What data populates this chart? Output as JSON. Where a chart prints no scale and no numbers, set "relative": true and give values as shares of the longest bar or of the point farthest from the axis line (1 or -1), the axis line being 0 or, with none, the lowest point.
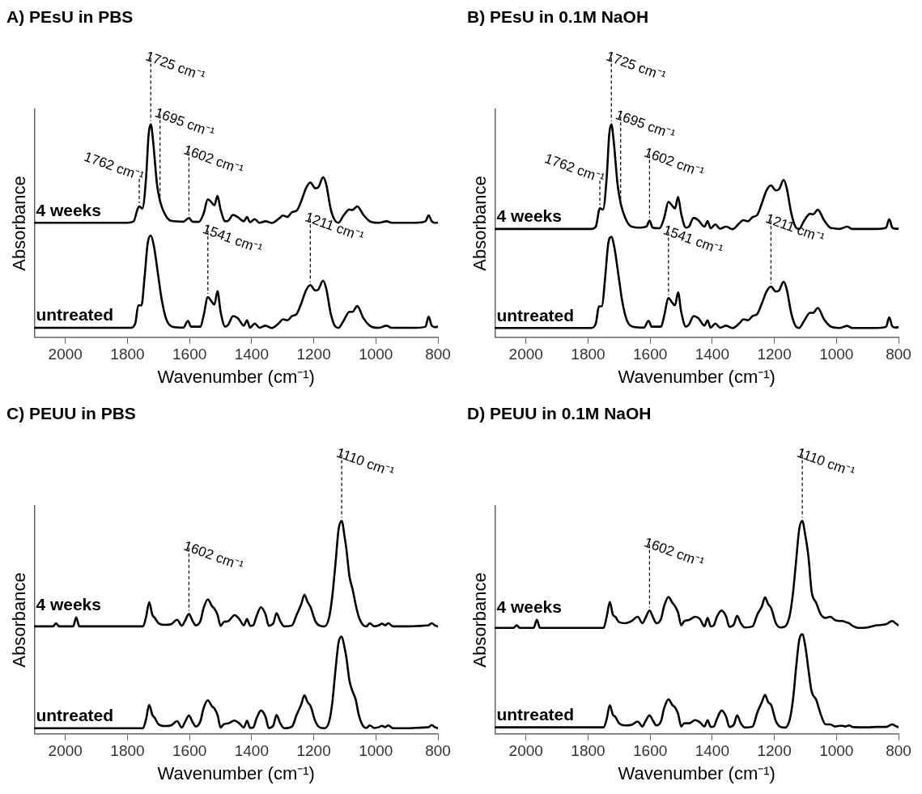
{
  "chart_data": [
    {
      "type": "line",
      "title": "A) PEsU in PBS",
      "xlabel": "Wavenumber (cm⁻¹)",
      "ylabel": "Absorbance",
      "xlim": [
        2100,
        800
      ],
      "xticks": [
        2000,
        1800,
        1600,
        1400,
        1200,
        1000,
        800
      ],
      "relative": true,
      "grid": false,
      "legend": false,
      "series": [
        {
          "name": "4 weeks",
          "color": "#000000",
          "x": [
            2100,
            1800,
            1780,
            1768,
            1762,
            1752,
            1740,
            1732,
            1725,
            1718,
            1705,
            1695,
            1680,
            1660,
            1620,
            1602,
            1590,
            1570,
            1555,
            1541,
            1530,
            1520,
            1510,
            1500,
            1485,
            1475,
            1460,
            1445,
            1425,
            1415,
            1405,
            1390,
            1375,
            1355,
            1335,
            1310,
            1300,
            1285,
            1270,
            1255,
            1240,
            1225,
            1211,
            1195,
            1185,
            1170,
            1160,
            1145,
            1130,
            1120,
            1105,
            1085,
            1075,
            1060,
            1040,
            1020,
            1010,
            990,
            965,
            950,
            870,
            840,
            830,
            820,
            810,
            800
          ],
          "values": [
            0.538,
            0.538,
            0.545,
            0.6,
            0.615,
            0.605,
            0.75,
            0.95,
            1.0,
            0.93,
            0.72,
            0.64,
            0.58,
            0.547,
            0.543,
            0.56,
            0.543,
            0.542,
            0.58,
            0.648,
            0.635,
            0.62,
            0.664,
            0.6,
            0.545,
            0.548,
            0.575,
            0.565,
            0.545,
            0.565,
            0.54,
            0.555,
            0.538,
            0.545,
            0.537,
            0.56,
            0.572,
            0.565,
            0.588,
            0.595,
            0.64,
            0.7,
            0.727,
            0.7,
            0.705,
            0.751,
            0.72,
            0.6,
            0.545,
            0.538,
            0.57,
            0.6,
            0.598,
            0.615,
            0.575,
            0.545,
            0.54,
            0.538,
            0.545,
            0.538,
            0.538,
            0.545,
            0.573,
            0.545,
            0.538,
            0.538
          ]
        },
        {
          "name": "untreated",
          "color": "#000000",
          "x": [
            2100,
            1790,
            1775,
            1765,
            1755,
            1745,
            1735,
            1725,
            1715,
            1700,
            1690,
            1675,
            1655,
            1620,
            1605,
            1595,
            1565,
            1555,
            1541,
            1530,
            1520,
            1510,
            1500,
            1485,
            1475,
            1460,
            1445,
            1425,
            1415,
            1405,
            1390,
            1375,
            1355,
            1335,
            1310,
            1300,
            1285,
            1270,
            1255,
            1240,
            1225,
            1211,
            1195,
            1185,
            1170,
            1160,
            1145,
            1130,
            1120,
            1105,
            1085,
            1075,
            1060,
            1040,
            1020,
            1010,
            990,
            965,
            950,
            870,
            840,
            830,
            820,
            810,
            800
          ],
          "values": [
            0.045,
            0.045,
            0.065,
            0.15,
            0.15,
            0.28,
            0.44,
            0.478,
            0.43,
            0.28,
            0.18,
            0.085,
            0.05,
            0.046,
            0.077,
            0.05,
            0.05,
            0.1,
            0.189,
            0.17,
            0.154,
            0.217,
            0.12,
            0.05,
            0.06,
            0.1,
            0.09,
            0.055,
            0.08,
            0.045,
            0.065,
            0.045,
            0.055,
            0.044,
            0.07,
            0.085,
            0.08,
            0.1,
            0.11,
            0.16,
            0.22,
            0.245,
            0.22,
            0.225,
            0.266,
            0.23,
            0.11,
            0.05,
            0.045,
            0.075,
            0.12,
            0.12,
            0.147,
            0.09,
            0.055,
            0.048,
            0.045,
            0.055,
            0.045,
            0.045,
            0.05,
            0.098,
            0.055,
            0.048,
            0.05
          ]
        }
      ],
      "annotations": [
        {
          "text": "1762 cm⁻¹",
          "x": 1762,
          "y": 0.615
        },
        {
          "text": "1725 cm⁻¹",
          "x": 1725,
          "y": 1.0
        },
        {
          "text": "1695 cm⁻¹",
          "x": 1695,
          "y": 0.64
        },
        {
          "text": "1602 cm⁻¹",
          "x": 1602,
          "y": 0.56
        },
        {
          "text": "1541 cm⁻¹",
          "x": 1541,
          "y": 0.189
        },
        {
          "text": "1211 cm⁻¹",
          "x": 1211,
          "y": 0.245
        }
      ]
    },
    {
      "type": "line",
      "title": "B) PEsU in 0.1M NaOH",
      "xlabel": "Wavenumber (cm⁻¹)",
      "ylabel": "Absorbance",
      "xlim": [
        2100,
        800
      ],
      "xticks": [
        2000,
        1800,
        1600,
        1400,
        1200,
        1000,
        800
      ],
      "relative": true,
      "grid": false,
      "legend": false,
      "series": [
        {
          "name": "4 weeks",
          "color": "#000000",
          "x": [
            2100,
            1790,
            1775,
            1765,
            1762,
            1752,
            1740,
            1732,
            1725,
            1718,
            1705,
            1695,
            1680,
            1660,
            1630,
            1612,
            1602,
            1592,
            1570,
            1555,
            1541,
            1530,
            1520,
            1510,
            1500,
            1485,
            1475,
            1460,
            1445,
            1425,
            1415,
            1405,
            1390,
            1375,
            1355,
            1335,
            1310,
            1300,
            1285,
            1270,
            1255,
            1240,
            1225,
            1211,
            1195,
            1185,
            1170,
            1160,
            1145,
            1130,
            1120,
            1105,
            1085,
            1075,
            1060,
            1040,
            1020,
            1010,
            990,
            965,
            950,
            870,
            840,
            830,
            820,
            810,
            800
          ],
          "values": [
            0.509,
            0.509,
            0.52,
            0.595,
            0.606,
            0.6,
            0.75,
            0.95,
            1.0,
            0.93,
            0.72,
            0.63,
            0.56,
            0.52,
            0.515,
            0.52,
            0.548,
            0.515,
            0.512,
            0.56,
            0.636,
            0.62,
            0.605,
            0.659,
            0.58,
            0.515,
            0.52,
            0.561,
            0.55,
            0.52,
            0.545,
            0.512,
            0.53,
            0.51,
            0.52,
            0.508,
            0.54,
            0.55,
            0.545,
            0.565,
            0.575,
            0.63,
            0.69,
            0.713,
            0.69,
            0.695,
            0.739,
            0.7,
            0.58,
            0.515,
            0.509,
            0.545,
            0.58,
            0.578,
            0.599,
            0.55,
            0.515,
            0.512,
            0.509,
            0.52,
            0.509,
            0.509,
            0.515,
            0.555,
            0.515,
            0.51,
            0.51
          ]
        },
        {
          "name": "untreated",
          "color": "#000000",
          "x": [
            2100,
            1790,
            1775,
            1765,
            1755,
            1745,
            1735,
            1725,
            1715,
            1700,
            1690,
            1675,
            1655,
            1620,
            1605,
            1595,
            1565,
            1555,
            1541,
            1530,
            1520,
            1510,
            1500,
            1485,
            1475,
            1460,
            1445,
            1425,
            1415,
            1405,
            1390,
            1375,
            1355,
            1335,
            1310,
            1300,
            1285,
            1270,
            1255,
            1240,
            1225,
            1211,
            1195,
            1185,
            1170,
            1160,
            1145,
            1130,
            1120,
            1105,
            1085,
            1075,
            1060,
            1040,
            1020,
            1010,
            990,
            965,
            950,
            870,
            840,
            830,
            820,
            810,
            800
          ],
          "values": [
            0.044,
            0.044,
            0.065,
            0.145,
            0.147,
            0.28,
            0.44,
            0.472,
            0.42,
            0.27,
            0.17,
            0.08,
            0.05,
            0.046,
            0.078,
            0.05,
            0.05,
            0.1,
            0.184,
            0.165,
            0.15,
            0.211,
            0.12,
            0.05,
            0.06,
            0.1,
            0.09,
            0.055,
            0.08,
            0.045,
            0.065,
            0.045,
            0.055,
            0.043,
            0.07,
            0.085,
            0.08,
            0.1,
            0.11,
            0.16,
            0.215,
            0.238,
            0.215,
            0.22,
            0.261,
            0.225,
            0.11,
            0.05,
            0.044,
            0.075,
            0.115,
            0.115,
            0.138,
            0.085,
            0.052,
            0.047,
            0.044,
            0.054,
            0.044,
            0.044,
            0.05,
            0.094,
            0.052,
            0.046,
            0.048
          ]
        }
      ],
      "annotations": [
        {
          "text": "1762 cm⁻¹",
          "x": 1762,
          "y": 0.606
        },
        {
          "text": "1725 cm⁻¹",
          "x": 1725,
          "y": 1.0
        },
        {
          "text": "1695 cm⁻¹",
          "x": 1695,
          "y": 0.63
        },
        {
          "text": "1602 cm⁻¹",
          "x": 1602,
          "y": 0.548
        },
        {
          "text": "1541 cm⁻¹",
          "x": 1541,
          "y": 0.184
        },
        {
          "text": "1211 cm⁻¹",
          "x": 1211,
          "y": 0.238
        }
      ]
    },
    {
      "type": "line",
      "title": "C) PEUU in PBS",
      "xlabel": "Wavenumber (cm⁻¹)",
      "ylabel": "Absorbance",
      "xlim": [
        2100,
        800
      ],
      "xticks": [
        2000,
        1800,
        1600,
        1400,
        1200,
        1000,
        800
      ],
      "relative": true,
      "grid": false,
      "legend": false,
      "series": [
        {
          "name": "4 weeks",
          "color": "#000000",
          "x": [
            2100,
            2040,
            2030,
            2020,
            1975,
            1965,
            1955,
            1750,
            1740,
            1730,
            1720,
            1712,
            1700,
            1680,
            1660,
            1640,
            1625,
            1615,
            1602,
            1590,
            1580,
            1565,
            1555,
            1541,
            1528,
            1520,
            1510,
            1500,
            1490,
            1475,
            1455,
            1440,
            1425,
            1415,
            1405,
            1395,
            1385,
            1370,
            1355,
            1345,
            1330,
            1320,
            1308,
            1295,
            1270,
            1255,
            1240,
            1230,
            1220,
            1210,
            1195,
            1180,
            1165,
            1150,
            1140,
            1130,
            1120,
            1110,
            1100,
            1095,
            1085,
            1075,
            1065,
            1055,
            1040,
            1030,
            1020,
            1005,
            990,
            980,
            970,
            960,
            945,
            900,
            850,
            830,
            820,
            810,
            800
          ],
          "values": [
            0.505,
            0.505,
            0.52,
            0.505,
            0.505,
            0.547,
            0.505,
            0.505,
            0.55,
            0.618,
            0.56,
            0.545,
            0.52,
            0.512,
            0.515,
            0.536,
            0.508,
            0.53,
            0.563,
            0.53,
            0.51,
            0.53,
            0.59,
            0.632,
            0.6,
            0.588,
            0.56,
            0.508,
            0.525,
            0.53,
            0.558,
            0.54,
            0.51,
            0.54,
            0.508,
            0.51,
            0.55,
            0.595,
            0.56,
            0.508,
            0.52,
            0.567,
            0.53,
            0.505,
            0.51,
            0.56,
            0.61,
            0.654,
            0.62,
            0.595,
            0.53,
            0.508,
            0.505,
            0.55,
            0.65,
            0.8,
            0.96,
            1.0,
            0.92,
            0.87,
            0.74,
            0.68,
            0.608,
            0.55,
            0.51,
            0.505,
            0.52,
            0.505,
            0.51,
            0.518,
            0.51,
            0.52,
            0.505,
            0.505,
            0.508,
            0.51,
            0.52,
            0.51,
            0.505
          ]
        },
        {
          "name": "untreated",
          "color": "#000000",
          "x": [
            2100,
            1750,
            1740,
            1730,
            1720,
            1712,
            1700,
            1680,
            1660,
            1640,
            1625,
            1615,
            1602,
            1590,
            1580,
            1565,
            1555,
            1541,
            1528,
            1520,
            1510,
            1500,
            1490,
            1475,
            1455,
            1440,
            1425,
            1415,
            1405,
            1395,
            1385,
            1370,
            1355,
            1345,
            1330,
            1320,
            1308,
            1295,
            1270,
            1255,
            1240,
            1230,
            1220,
            1210,
            1195,
            1180,
            1165,
            1150,
            1140,
            1130,
            1120,
            1110,
            1100,
            1095,
            1085,
            1075,
            1065,
            1055,
            1040,
            1030,
            1020,
            1005,
            990,
            980,
            970,
            960,
            945,
            900,
            850,
            830,
            820,
            810,
            800
          ],
          "values": [
            0.027,
            0.027,
            0.07,
            0.137,
            0.09,
            0.075,
            0.045,
            0.037,
            0.04,
            0.06,
            0.03,
            0.055,
            0.086,
            0.055,
            0.035,
            0.06,
            0.12,
            0.158,
            0.13,
            0.12,
            0.09,
            0.03,
            0.045,
            0.05,
            0.063,
            0.05,
            0.03,
            0.062,
            0.028,
            0.03,
            0.07,
            0.11,
            0.08,
            0.028,
            0.04,
            0.089,
            0.05,
            0.027,
            0.035,
            0.09,
            0.14,
            0.181,
            0.15,
            0.13,
            0.06,
            0.03,
            0.027,
            0.06,
            0.15,
            0.3,
            0.43,
            0.457,
            0.4,
            0.36,
            0.25,
            0.2,
            0.162,
            0.09,
            0.035,
            0.028,
            0.04,
            0.028,
            0.032,
            0.038,
            0.032,
            0.04,
            0.027,
            0.027,
            0.03,
            0.032,
            0.042,
            0.032,
            0.027
          ]
        }
      ],
      "annotations": [
        {
          "text": "1602 cm⁻¹",
          "x": 1602,
          "y": 0.563
        },
        {
          "text": "1110 cm⁻¹",
          "x": 1110,
          "y": 1.0
        }
      ]
    },
    {
      "type": "line",
      "title": "D) PEUU in 0.1M NaOH",
      "xlabel": "Wavenumber (cm⁻¹)",
      "ylabel": "Absorbance",
      "xlim": [
        2100,
        800
      ],
      "xticks": [
        2000,
        1800,
        1600,
        1400,
        1200,
        1000,
        800
      ],
      "relative": true,
      "grid": false,
      "legend": false,
      "series": [
        {
          "name": "4 weeks",
          "color": "#000000",
          "x": [
            2100,
            2040,
            2030,
            2020,
            1975,
            1965,
            1955,
            1750,
            1740,
            1730,
            1720,
            1712,
            1700,
            1680,
            1660,
            1640,
            1625,
            1615,
            1602,
            1590,
            1580,
            1565,
            1555,
            1541,
            1528,
            1520,
            1510,
            1500,
            1490,
            1475,
            1455,
            1440,
            1425,
            1415,
            1405,
            1395,
            1385,
            1370,
            1355,
            1345,
            1330,
            1320,
            1308,
            1295,
            1270,
            1255,
            1240,
            1230,
            1220,
            1210,
            1195,
            1180,
            1165,
            1150,
            1140,
            1130,
            1120,
            1110,
            1100,
            1090,
            1080,
            1065,
            1050,
            1035,
            1020,
            1005,
            990,
            980,
            970,
            960,
            945,
            930,
            900,
            870,
            840,
            820,
            810,
            800
          ],
          "values": [
            0.498,
            0.498,
            0.51,
            0.498,
            0.498,
            0.536,
            0.498,
            0.498,
            0.55,
            0.619,
            0.56,
            0.55,
            0.525,
            0.52,
            0.53,
            0.55,
            0.52,
            0.545,
            0.579,
            0.545,
            0.52,
            0.54,
            0.6,
            0.643,
            0.615,
            0.6,
            0.57,
            0.51,
            0.53,
            0.535,
            0.55,
            0.54,
            0.505,
            0.545,
            0.505,
            0.51,
            0.55,
            0.579,
            0.55,
            0.503,
            0.515,
            0.555,
            0.52,
            0.5,
            0.505,
            0.56,
            0.6,
            0.641,
            0.61,
            0.59,
            0.52,
            0.5,
            0.505,
            0.56,
            0.66,
            0.81,
            0.96,
            1.0,
            0.93,
            0.83,
            0.67,
            0.615,
            0.56,
            0.545,
            0.55,
            0.535,
            0.53,
            0.53,
            0.525,
            0.52,
            0.505,
            0.498,
            0.5,
            0.51,
            0.515,
            0.53,
            0.52,
            0.51
          ]
        },
        {
          "name": "untreated",
          "color": "#000000",
          "x": [
            2100,
            1750,
            1740,
            1730,
            1720,
            1712,
            1700,
            1680,
            1660,
            1640,
            1625,
            1615,
            1602,
            1590,
            1580,
            1565,
            1555,
            1541,
            1528,
            1520,
            1510,
            1500,
            1490,
            1475,
            1455,
            1440,
            1425,
            1415,
            1405,
            1395,
            1385,
            1370,
            1355,
            1345,
            1330,
            1320,
            1308,
            1295,
            1270,
            1255,
            1240,
            1230,
            1220,
            1210,
            1195,
            1180,
            1165,
            1150,
            1140,
            1130,
            1120,
            1110,
            1100,
            1090,
            1080,
            1065,
            1050,
            1035,
            1020,
            1005,
            990,
            980,
            970,
            960,
            945,
            900,
            870,
            840,
            820,
            810,
            800
          ],
          "values": [
            0.031,
            0.031,
            0.07,
            0.135,
            0.09,
            0.08,
            0.05,
            0.04,
            0.043,
            0.058,
            0.035,
            0.06,
            0.087,
            0.06,
            0.04,
            0.06,
            0.12,
            0.162,
            0.135,
            0.125,
            0.095,
            0.035,
            0.05,
            0.05,
            0.065,
            0.055,
            0.035,
            0.065,
            0.033,
            0.035,
            0.07,
            0.11,
            0.08,
            0.033,
            0.045,
            0.087,
            0.05,
            0.03,
            0.035,
            0.1,
            0.15,
            0.183,
            0.15,
            0.135,
            0.06,
            0.033,
            0.03,
            0.07,
            0.16,
            0.31,
            0.44,
            0.468,
            0.41,
            0.3,
            0.2,
            0.16,
            0.09,
            0.045,
            0.045,
            0.035,
            0.038,
            0.038,
            0.035,
            0.04,
            0.032,
            0.031,
            0.033,
            0.033,
            0.045,
            0.038,
            0.031
          ]
        }
      ],
      "annotations": [
        {
          "text": "1602 cm⁻¹",
          "x": 1602,
          "y": 0.579
        },
        {
          "text": "1110 cm⁻¹",
          "x": 1110,
          "y": 1.0
        }
      ]
    }
  ]
}
